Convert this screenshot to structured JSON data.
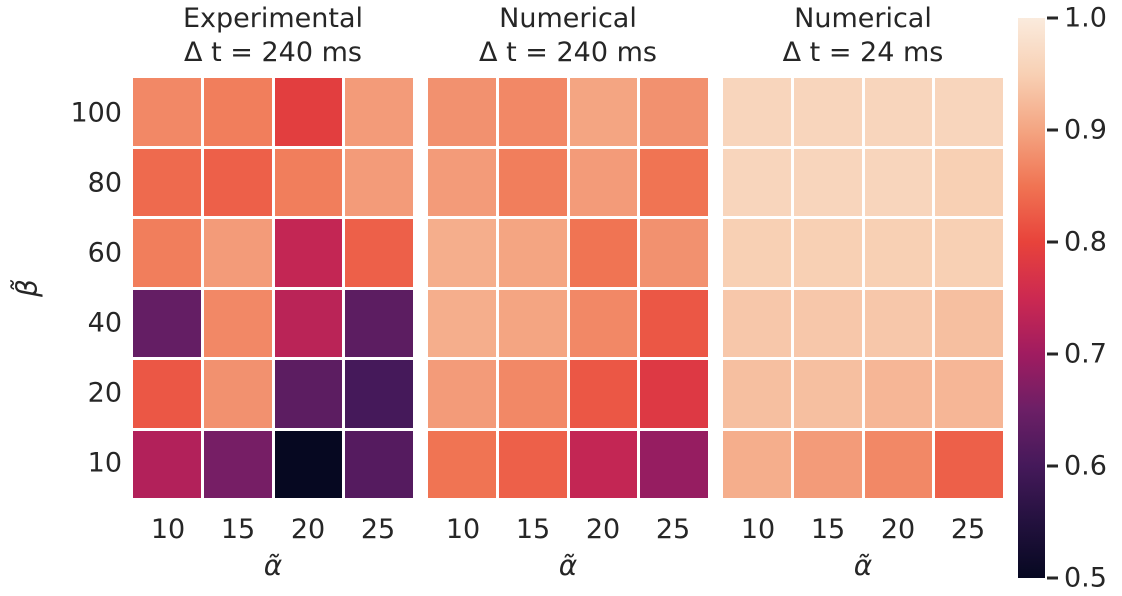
{
  "figure": {
    "background": "#ffffff",
    "text_color": "#262626"
  },
  "colormap": {
    "name": "rocket",
    "stops": [
      {
        "v": 0.5,
        "color": "#060821"
      },
      {
        "v": 0.55,
        "color": "#23113E"
      },
      {
        "v": 0.6,
        "color": "#45195A"
      },
      {
        "v": 0.65,
        "color": "#6C1F66"
      },
      {
        "v": 0.7,
        "color": "#A01C60"
      },
      {
        "v": 0.75,
        "color": "#CC2951"
      },
      {
        "v": 0.8,
        "color": "#E8433B"
      },
      {
        "v": 0.85,
        "color": "#F07453"
      },
      {
        "v": 0.9,
        "color": "#F4A582"
      },
      {
        "v": 0.95,
        "color": "#F8D0B4"
      },
      {
        "v": 1.0,
        "color": "#FAEBDD"
      }
    ]
  },
  "colorbar": {
    "vmin": 0.5,
    "vmax": 1.0,
    "tick_labels": [
      "1.0",
      "0.9",
      "0.8",
      "0.7",
      "0.6",
      "0.5"
    ],
    "tick_values": [
      1.0,
      0.9,
      0.8,
      0.7,
      0.6,
      0.5
    ]
  },
  "chart_data": [
    {
      "type": "heatmap",
      "title_lines": [
        "Experimental",
        "Δ t = 240 ms"
      ],
      "xlabel": "α̃",
      "ylabel": "β̃",
      "x_ticks": [
        "10",
        "15",
        "20",
        "25"
      ],
      "y_ticks": [
        "100",
        "80",
        "60",
        "40",
        "20",
        "10"
      ],
      "vmin": 0.5,
      "vmax": 1.0,
      "values": [
        [
          0.87,
          0.86,
          0.79,
          0.89
        ],
        [
          0.84,
          0.83,
          0.86,
          0.89
        ],
        [
          0.86,
          0.89,
          0.74,
          0.83
        ],
        [
          0.64,
          0.87,
          0.73,
          0.63
        ],
        [
          0.82,
          0.88,
          0.63,
          0.6
        ],
        [
          0.72,
          0.66,
          0.5,
          0.62
        ]
      ]
    },
    {
      "type": "heatmap",
      "title_lines": [
        "Numerical",
        "Δ t = 240 ms"
      ],
      "xlabel": "α̃",
      "ylabel": "β̃",
      "x_ticks": [
        "10",
        "15",
        "20",
        "25"
      ],
      "y_ticks": [
        "100",
        "80",
        "60",
        "40",
        "20",
        "10"
      ],
      "vmin": 0.5,
      "vmax": 1.0,
      "values": [
        [
          0.88,
          0.87,
          0.9,
          0.88
        ],
        [
          0.89,
          0.86,
          0.89,
          0.85
        ],
        [
          0.91,
          0.9,
          0.85,
          0.88
        ],
        [
          0.91,
          0.9,
          0.87,
          0.82
        ],
        [
          0.89,
          0.87,
          0.82,
          0.78
        ],
        [
          0.85,
          0.83,
          0.74,
          0.69
        ]
      ]
    },
    {
      "type": "heatmap",
      "title_lines": [
        "Numerical",
        "Δ t = 24 ms"
      ],
      "xlabel": "α̃",
      "ylabel": "β̃",
      "x_ticks": [
        "10",
        "15",
        "20",
        "25"
      ],
      "y_ticks": [
        "100",
        "80",
        "60",
        "40",
        "20",
        "10"
      ],
      "vmin": 0.5,
      "vmax": 1.0,
      "values": [
        [
          0.96,
          0.96,
          0.96,
          0.96
        ],
        [
          0.96,
          0.96,
          0.96,
          0.95
        ],
        [
          0.95,
          0.95,
          0.95,
          0.95
        ],
        [
          0.94,
          0.94,
          0.94,
          0.93
        ],
        [
          0.93,
          0.93,
          0.92,
          0.92
        ],
        [
          0.91,
          0.89,
          0.87,
          0.83
        ]
      ]
    }
  ]
}
